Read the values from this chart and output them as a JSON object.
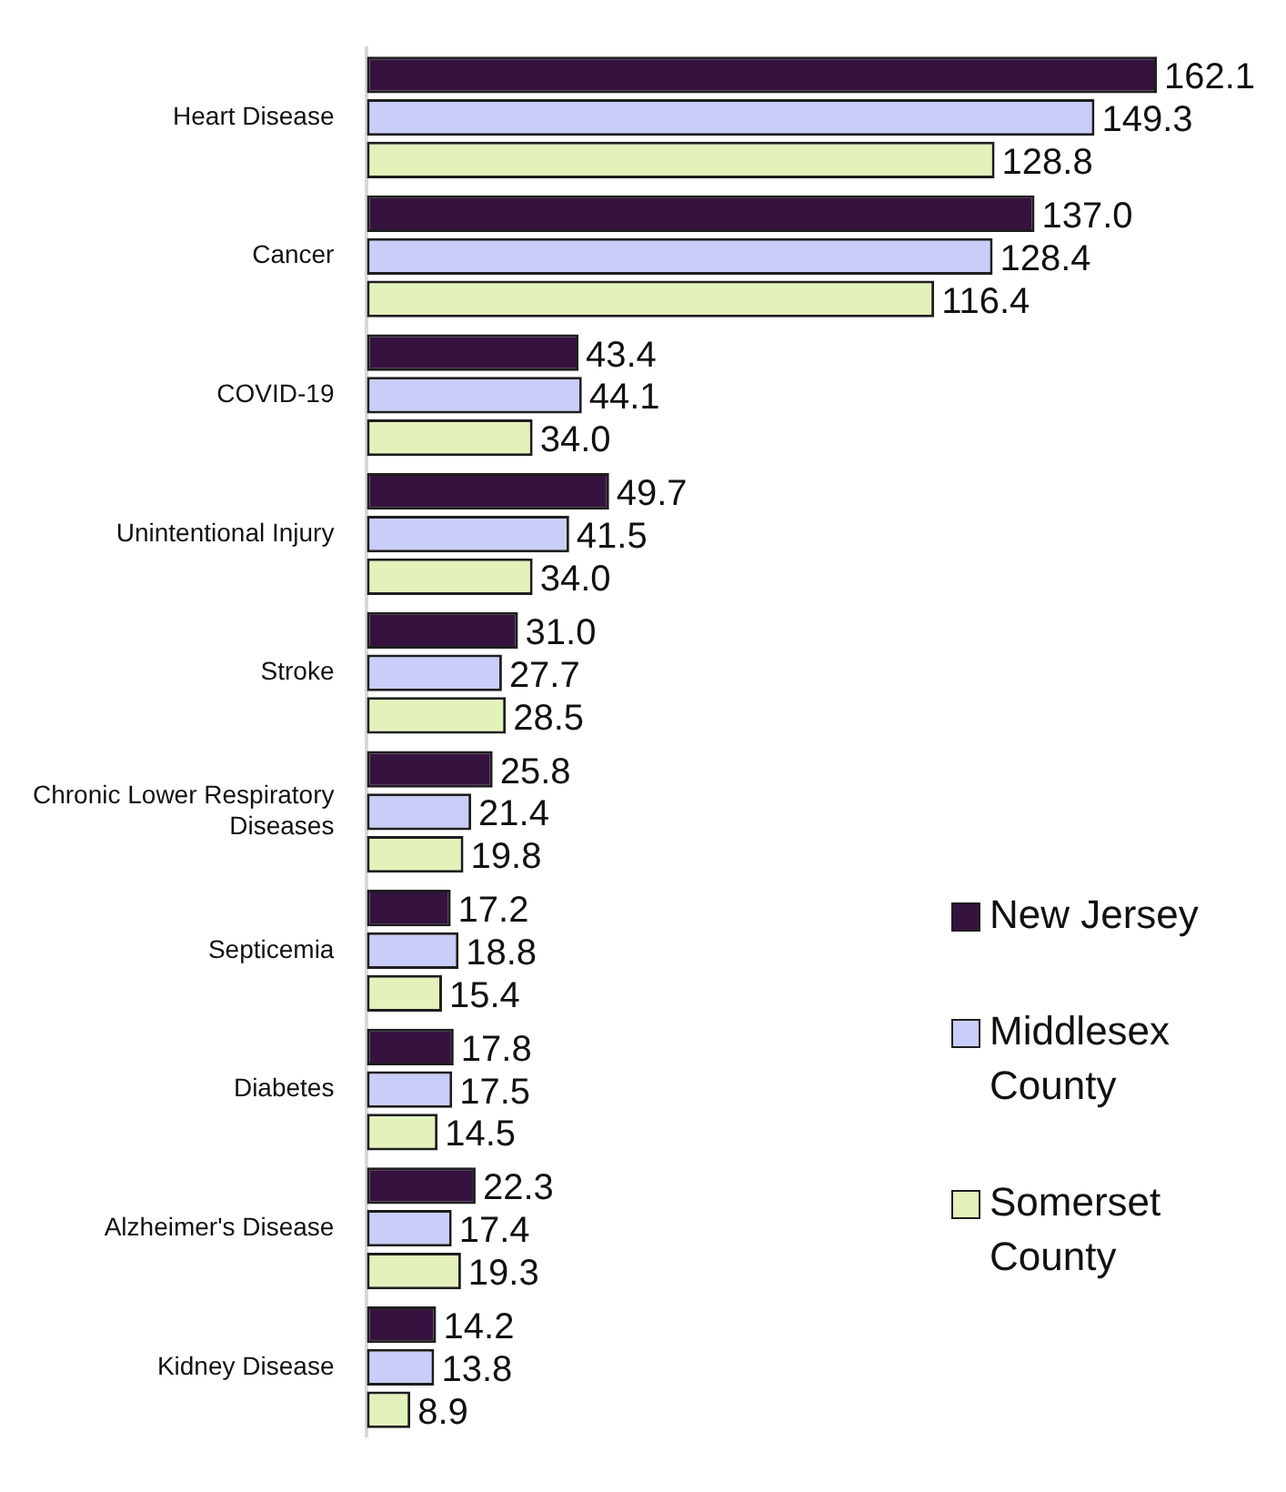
{
  "chart_data": {
    "type": "bar",
    "orientation": "horizontal",
    "categories": [
      "Heart Disease",
      "Cancer",
      "COVID-19",
      "Unintentional Injury",
      "Stroke",
      "Chronic Lower Respiratory Diseases",
      "Septicemia",
      "Diabetes",
      "Alzheimer's Disease",
      "Kidney Disease"
    ],
    "series": [
      {
        "name": "New Jersey",
        "color": "#36133f",
        "values": [
          162.1,
          137.0,
          43.4,
          49.7,
          31.0,
          25.8,
          17.2,
          17.8,
          22.3,
          14.2
        ],
        "value_labels": [
          "162.1",
          "137.0",
          "43.4",
          "49.7",
          "31.0",
          "25.8",
          "17.2",
          "17.8",
          "22.3",
          "14.2"
        ]
      },
      {
        "name": "Middlesex County",
        "color": "#c9cdf8",
        "values": [
          149.3,
          128.4,
          44.1,
          41.5,
          27.7,
          21.4,
          18.8,
          17.5,
          17.4,
          13.8
        ],
        "value_labels": [
          "149.3",
          "128.4",
          "44.1",
          "41.5",
          "27.7",
          "21.4",
          "18.8",
          "17.5",
          "17.4",
          "13.8"
        ]
      },
      {
        "name": "Somerset County",
        "color": "#e3f1bb",
        "values": [
          128.8,
          116.4,
          34.0,
          34.0,
          28.5,
          19.8,
          15.4,
          14.5,
          19.3,
          8.9
        ],
        "value_labels": [
          "128.8",
          "116.4",
          "34.0",
          "34.0",
          "28.5",
          "19.8",
          "15.4",
          "14.5",
          "19.3",
          "8.9"
        ]
      }
    ],
    "legend": "right",
    "grid": false
  }
}
